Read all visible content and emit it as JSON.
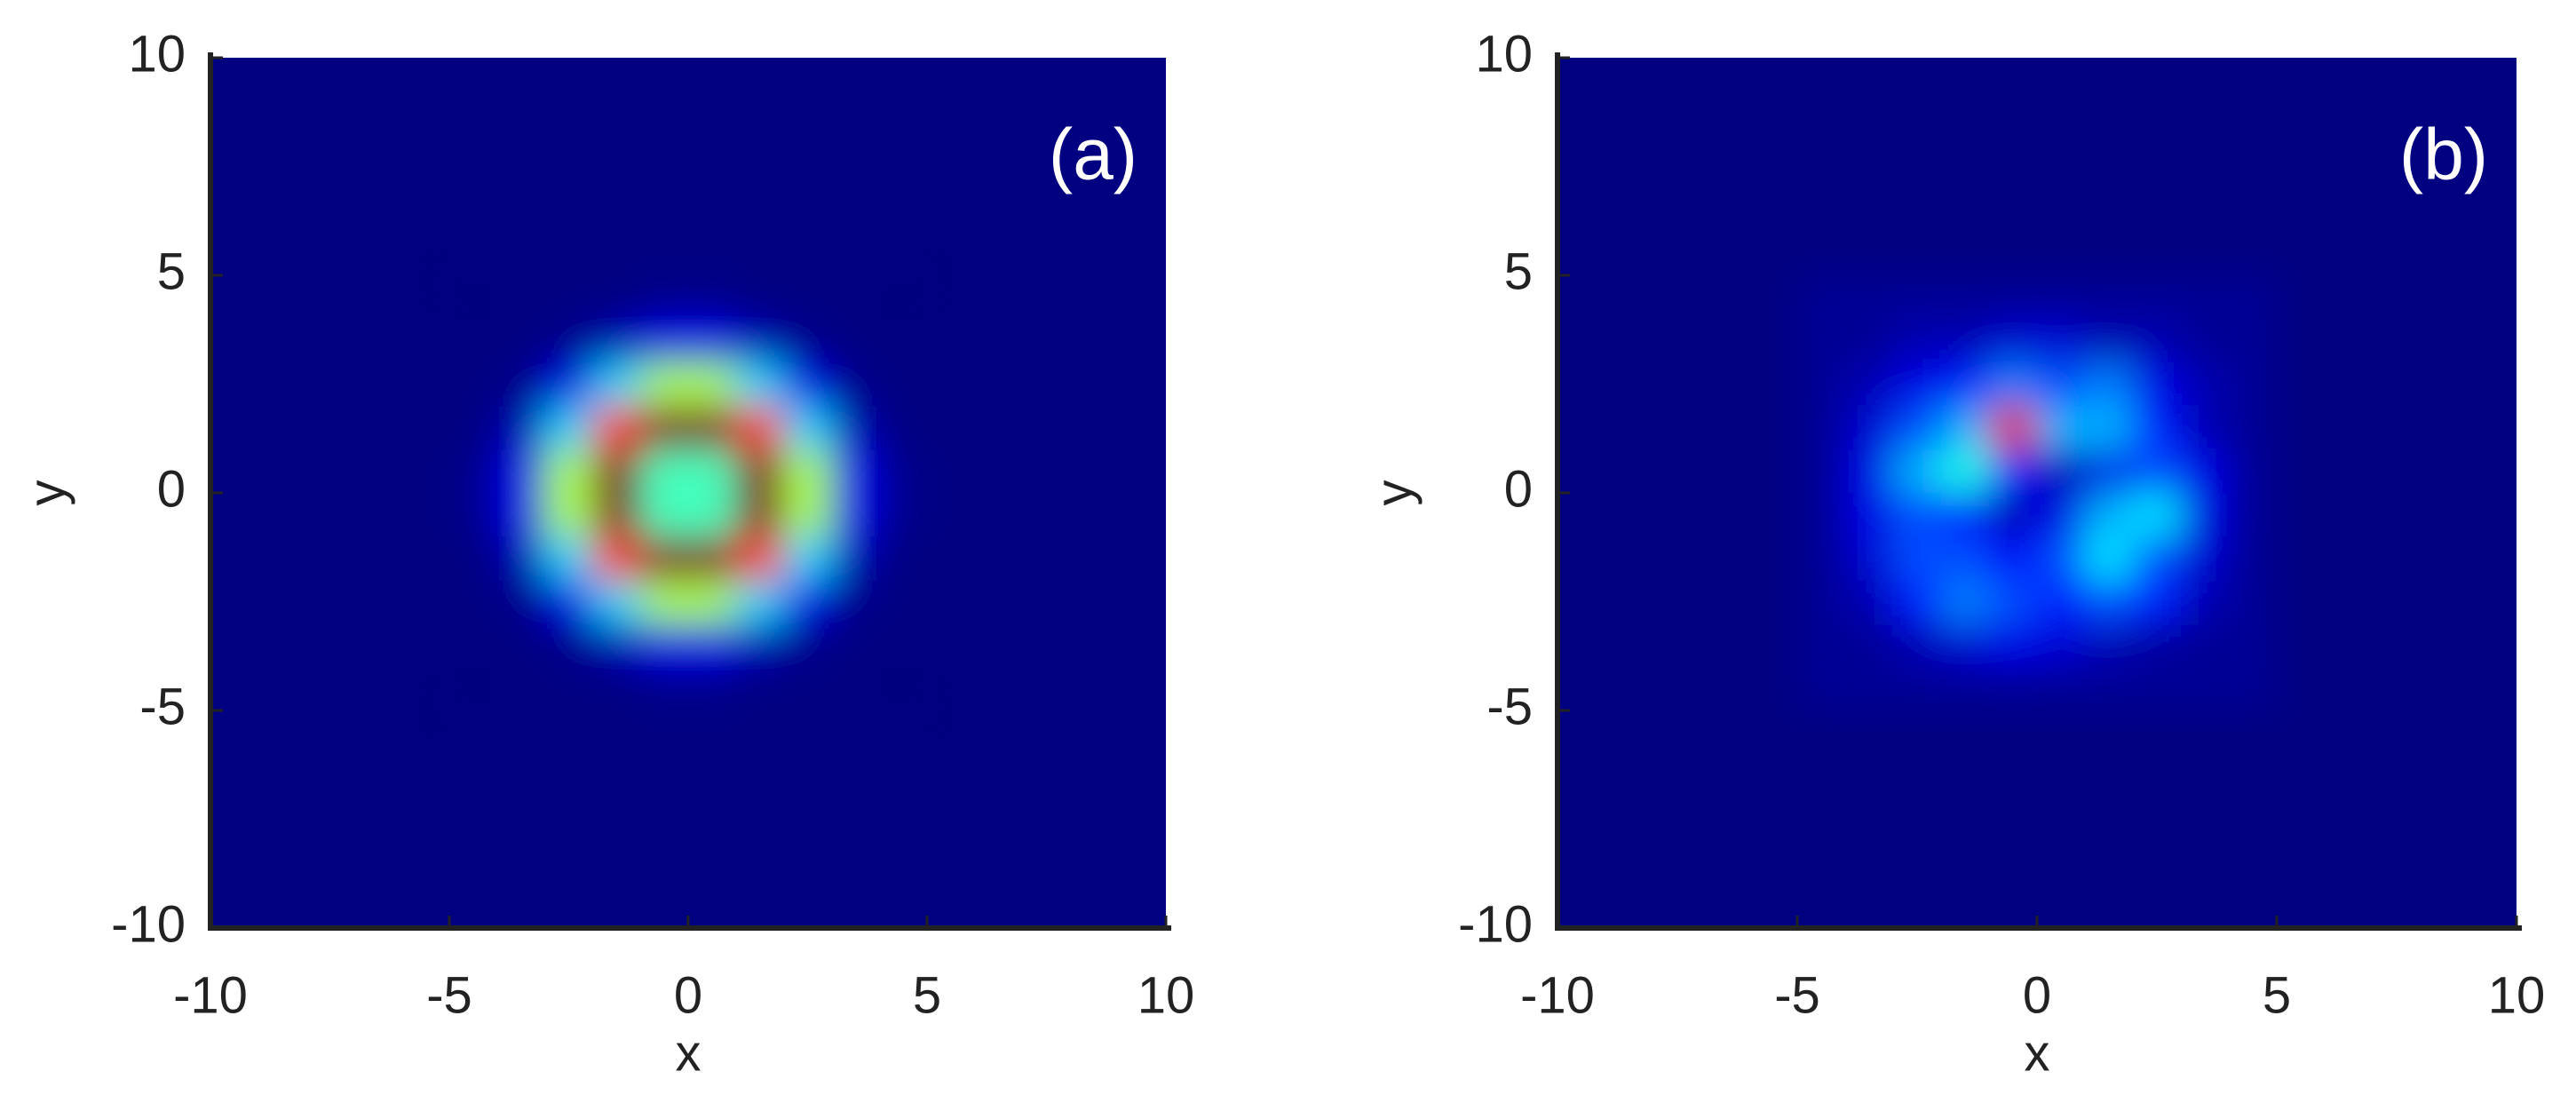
{
  "chart_data": [
    {
      "type": "heatmap",
      "annotation": "(a)",
      "xlabel": "x",
      "ylabel": "y",
      "xlim": [
        -10,
        10
      ],
      "ylim": [
        -10,
        10
      ],
      "xticks": [
        -10,
        -5,
        0,
        5,
        10
      ],
      "yticks": [
        -10,
        -5,
        0,
        5,
        10
      ],
      "colormap": "jet",
      "zlim": [
        0,
        1
      ],
      "x": [
        -4.5,
        -3.5,
        -2.5,
        -1.5,
        -0.5,
        0.5,
        1.5,
        2.5,
        3.5,
        4.5
      ],
      "y": [
        -4.5,
        -3.5,
        -2.5,
        -1.5,
        -0.5,
        0.5,
        1.5,
        2.5,
        3.5,
        4.5
      ],
      "z": [
        [
          0,
          0,
          0,
          0,
          0.01,
          0.01,
          0,
          0,
          0,
          0
        ],
        [
          0,
          0,
          0.01,
          0.05,
          0.1,
          0.1,
          0.05,
          0.01,
          0,
          0
        ],
        [
          0,
          0.01,
          0.1,
          0.33,
          0.54,
          0.54,
          0.33,
          0.1,
          0.01,
          0
        ],
        [
          0,
          0.05,
          0.33,
          0.82,
          1,
          1,
          0.82,
          0.33,
          0.05,
          0
        ],
        [
          0.01,
          0.1,
          0.54,
          1,
          0.44,
          0.44,
          1,
          0.54,
          0.1,
          0.01
        ],
        [
          0.01,
          0.1,
          0.54,
          1,
          0.44,
          0.44,
          1,
          0.54,
          0.1,
          0.01
        ],
        [
          0,
          0.05,
          0.33,
          0.82,
          1,
          1,
          0.82,
          0.33,
          0.05,
          0
        ],
        [
          0,
          0.01,
          0.1,
          0.33,
          0.54,
          0.54,
          0.33,
          0.1,
          0.01,
          0
        ],
        [
          0,
          0,
          0.01,
          0.05,
          0.1,
          0.1,
          0.05,
          0.01,
          0,
          0
        ],
        [
          0,
          0,
          0,
          0,
          0.01,
          0.01,
          0,
          0,
          0,
          0
        ]
      ]
    },
    {
      "type": "heatmap",
      "annotation": "(b)",
      "xlabel": "x",
      "ylabel": "y",
      "xlim": [
        -10,
        10
      ],
      "ylim": [
        -10,
        10
      ],
      "xticks": [
        -10,
        -5,
        0,
        5,
        10
      ],
      "yticks": [
        -10,
        -5,
        0,
        5,
        10
      ],
      "colormap": "jet",
      "zlim": [
        0,
        1
      ],
      "x": [
        -4.5,
        -3.5,
        -2.5,
        -1.5,
        -0.5,
        0.5,
        1.5,
        2.5,
        3.5,
        4.5
      ],
      "y": [
        -4.5,
        -3.5,
        -2.5,
        -1.5,
        -0.5,
        0.5,
        1.5,
        2.5,
        3.5,
        4.5
      ],
      "z": [
        [
          0.02,
          0.02,
          0.02,
          0.02,
          0.02,
          0.02,
          0.02,
          0.02,
          0.02,
          0.02
        ],
        [
          0.02,
          0.02,
          0.05,
          0.08,
          0.1,
          0.08,
          0.05,
          0.03,
          0.02,
          0.02
        ],
        [
          0.02,
          0.05,
          0.15,
          0.25,
          0.2,
          0.15,
          0.2,
          0.15,
          0.05,
          0.02
        ],
        [
          0.02,
          0.08,
          0.2,
          0.2,
          0.12,
          0.2,
          0.35,
          0.2,
          0.08,
          0.02
        ],
        [
          0.02,
          0.1,
          0.2,
          0.15,
          0.05,
          0.1,
          0.3,
          0.35,
          0.1,
          0.02
        ],
        [
          0.02,
          0.1,
          0.3,
          0.4,
          0.15,
          0.05,
          0.1,
          0.2,
          0.1,
          0.02
        ],
        [
          0.02,
          0.08,
          0.2,
          0.3,
          0.9,
          0.3,
          0.3,
          0.15,
          0.05,
          0.02
        ],
        [
          0.02,
          0.05,
          0.1,
          0.15,
          0.25,
          0.2,
          0.25,
          0.1,
          0.05,
          0.02
        ],
        [
          0.02,
          0.02,
          0.05,
          0.05,
          0.08,
          0.08,
          0.05,
          0.05,
          0.02,
          0.02
        ],
        [
          0.02,
          0.02,
          0.02,
          0.02,
          0.02,
          0.02,
          0.02,
          0.02,
          0.02,
          0.02
        ]
      ]
    }
  ]
}
